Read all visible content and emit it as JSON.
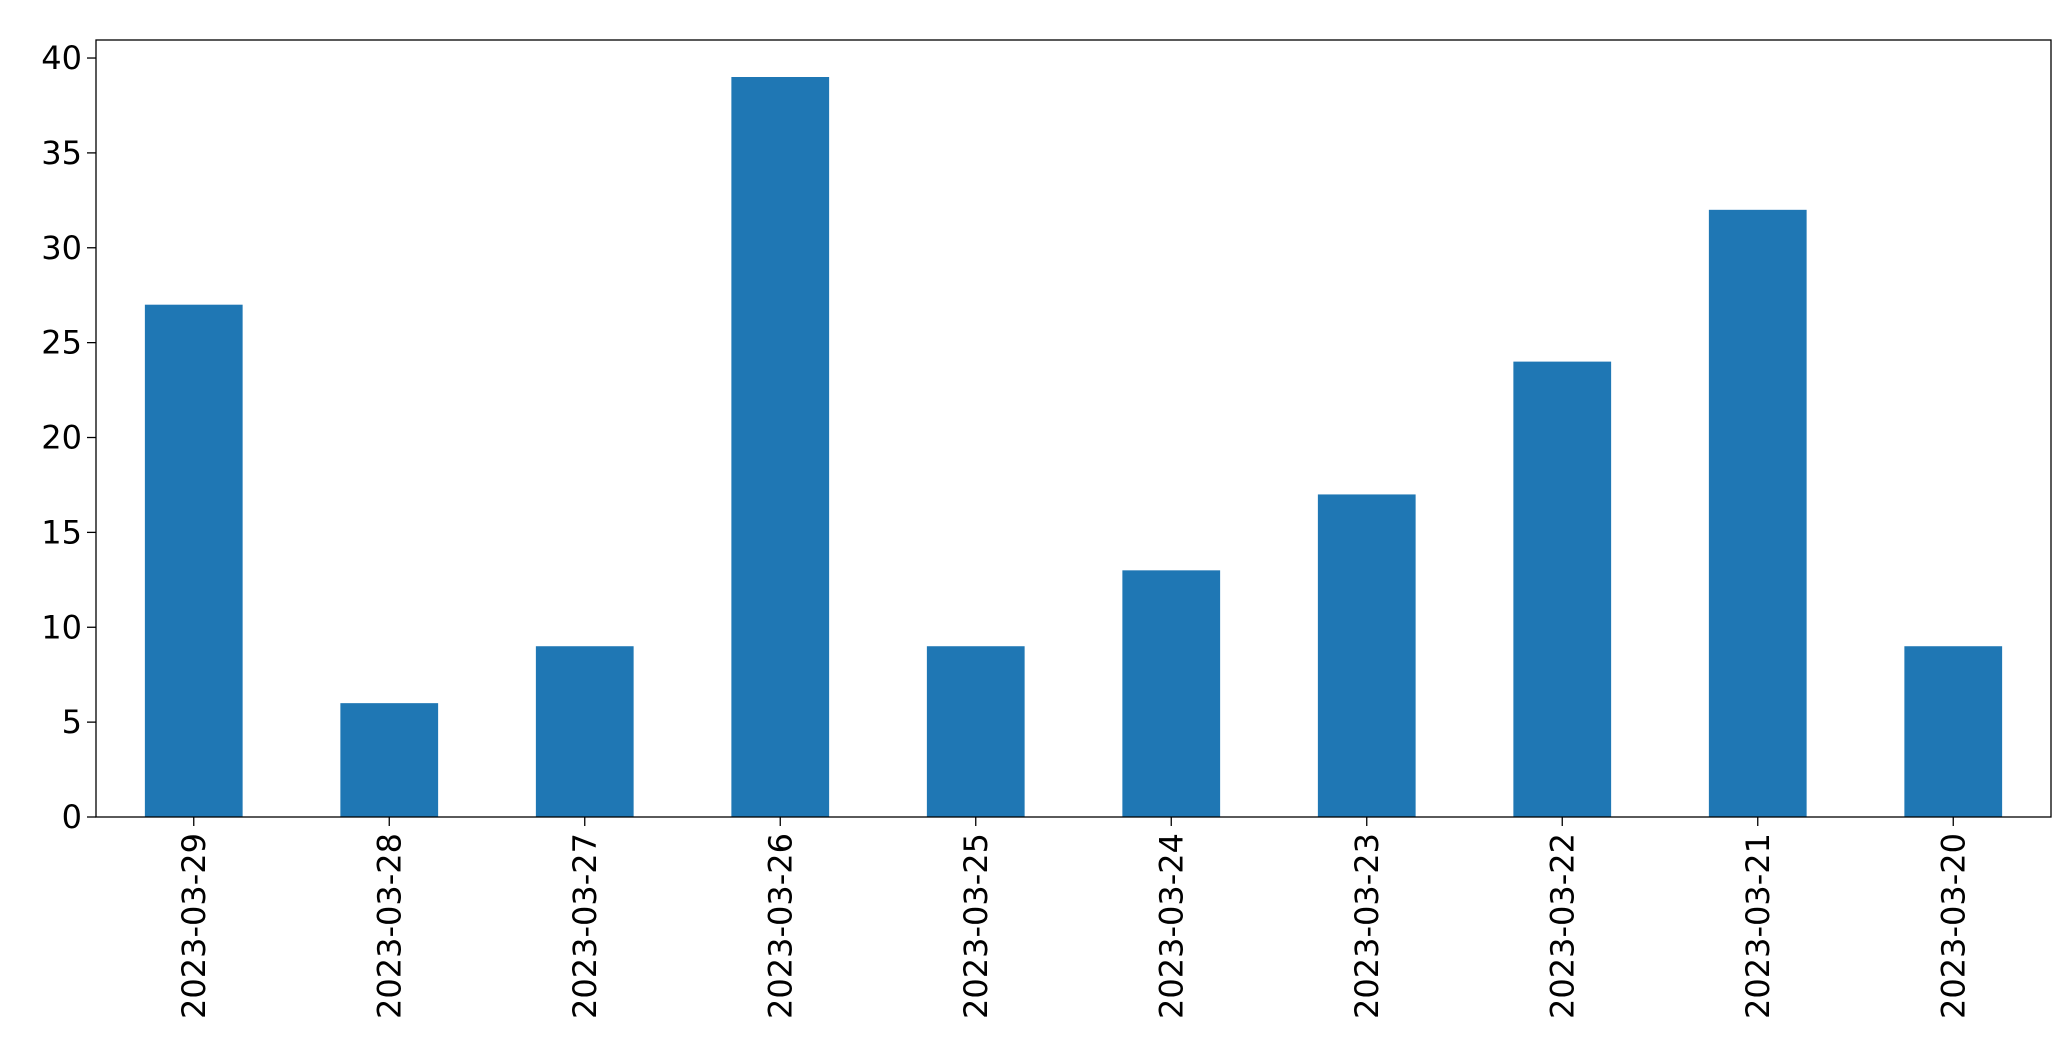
{
  "chart_data": {
    "type": "bar",
    "categories": [
      "2023-03-29",
      "2023-03-28",
      "2023-03-27",
      "2023-03-26",
      "2023-03-25",
      "2023-03-24",
      "2023-03-23",
      "2023-03-22",
      "2023-03-21",
      "2023-03-20"
    ],
    "values": [
      27,
      6,
      9,
      39,
      9,
      13,
      17,
      24,
      32,
      9
    ],
    "color": "#1f77b4",
    "ylim": [
      0,
      40.95
    ],
    "yticks": [
      0,
      5,
      10,
      15,
      20,
      25,
      30,
      35,
      40
    ],
    "grid": false
  }
}
